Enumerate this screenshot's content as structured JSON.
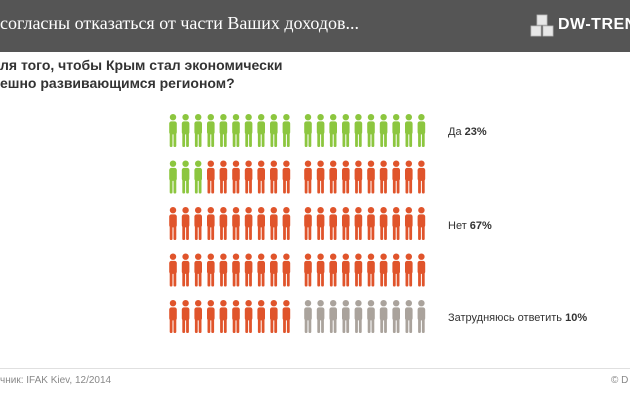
{
  "header": {
    "title": "согласны отказаться от части Ваших доходов...",
    "logo": "DW-TREN"
  },
  "question_lines": [
    "ля того, чтобы Крым стал экономически",
    "ешно развивающимся регионом?"
  ],
  "legend": [
    {
      "label": "Да",
      "value": "23%"
    },
    {
      "label": "Нет",
      "value": "67%"
    },
    {
      "label": "Затрудняюсь ответить",
      "value": "10%"
    }
  ],
  "footer": {
    "source": "чник: IFAK Kiev, 12/2014",
    "copyright": "© D"
  },
  "colors": {
    "header_bg": "#555555",
    "yes": "#8cc63f",
    "no": "#e0542b",
    "undecided": "#aaa39c"
  },
  "chart_data": {
    "type": "pictogram",
    "total_icons": 100,
    "grid": {
      "rows": 5,
      "columns": 20
    },
    "categories": [
      "Да",
      "Нет",
      "Затрудняюсь ответить"
    ],
    "values": [
      23,
      67,
      10
    ],
    "unit": "%",
    "icon": "person-icon",
    "colors": [
      "#8cc63f",
      "#e0542b",
      "#aaa39c"
    ]
  }
}
